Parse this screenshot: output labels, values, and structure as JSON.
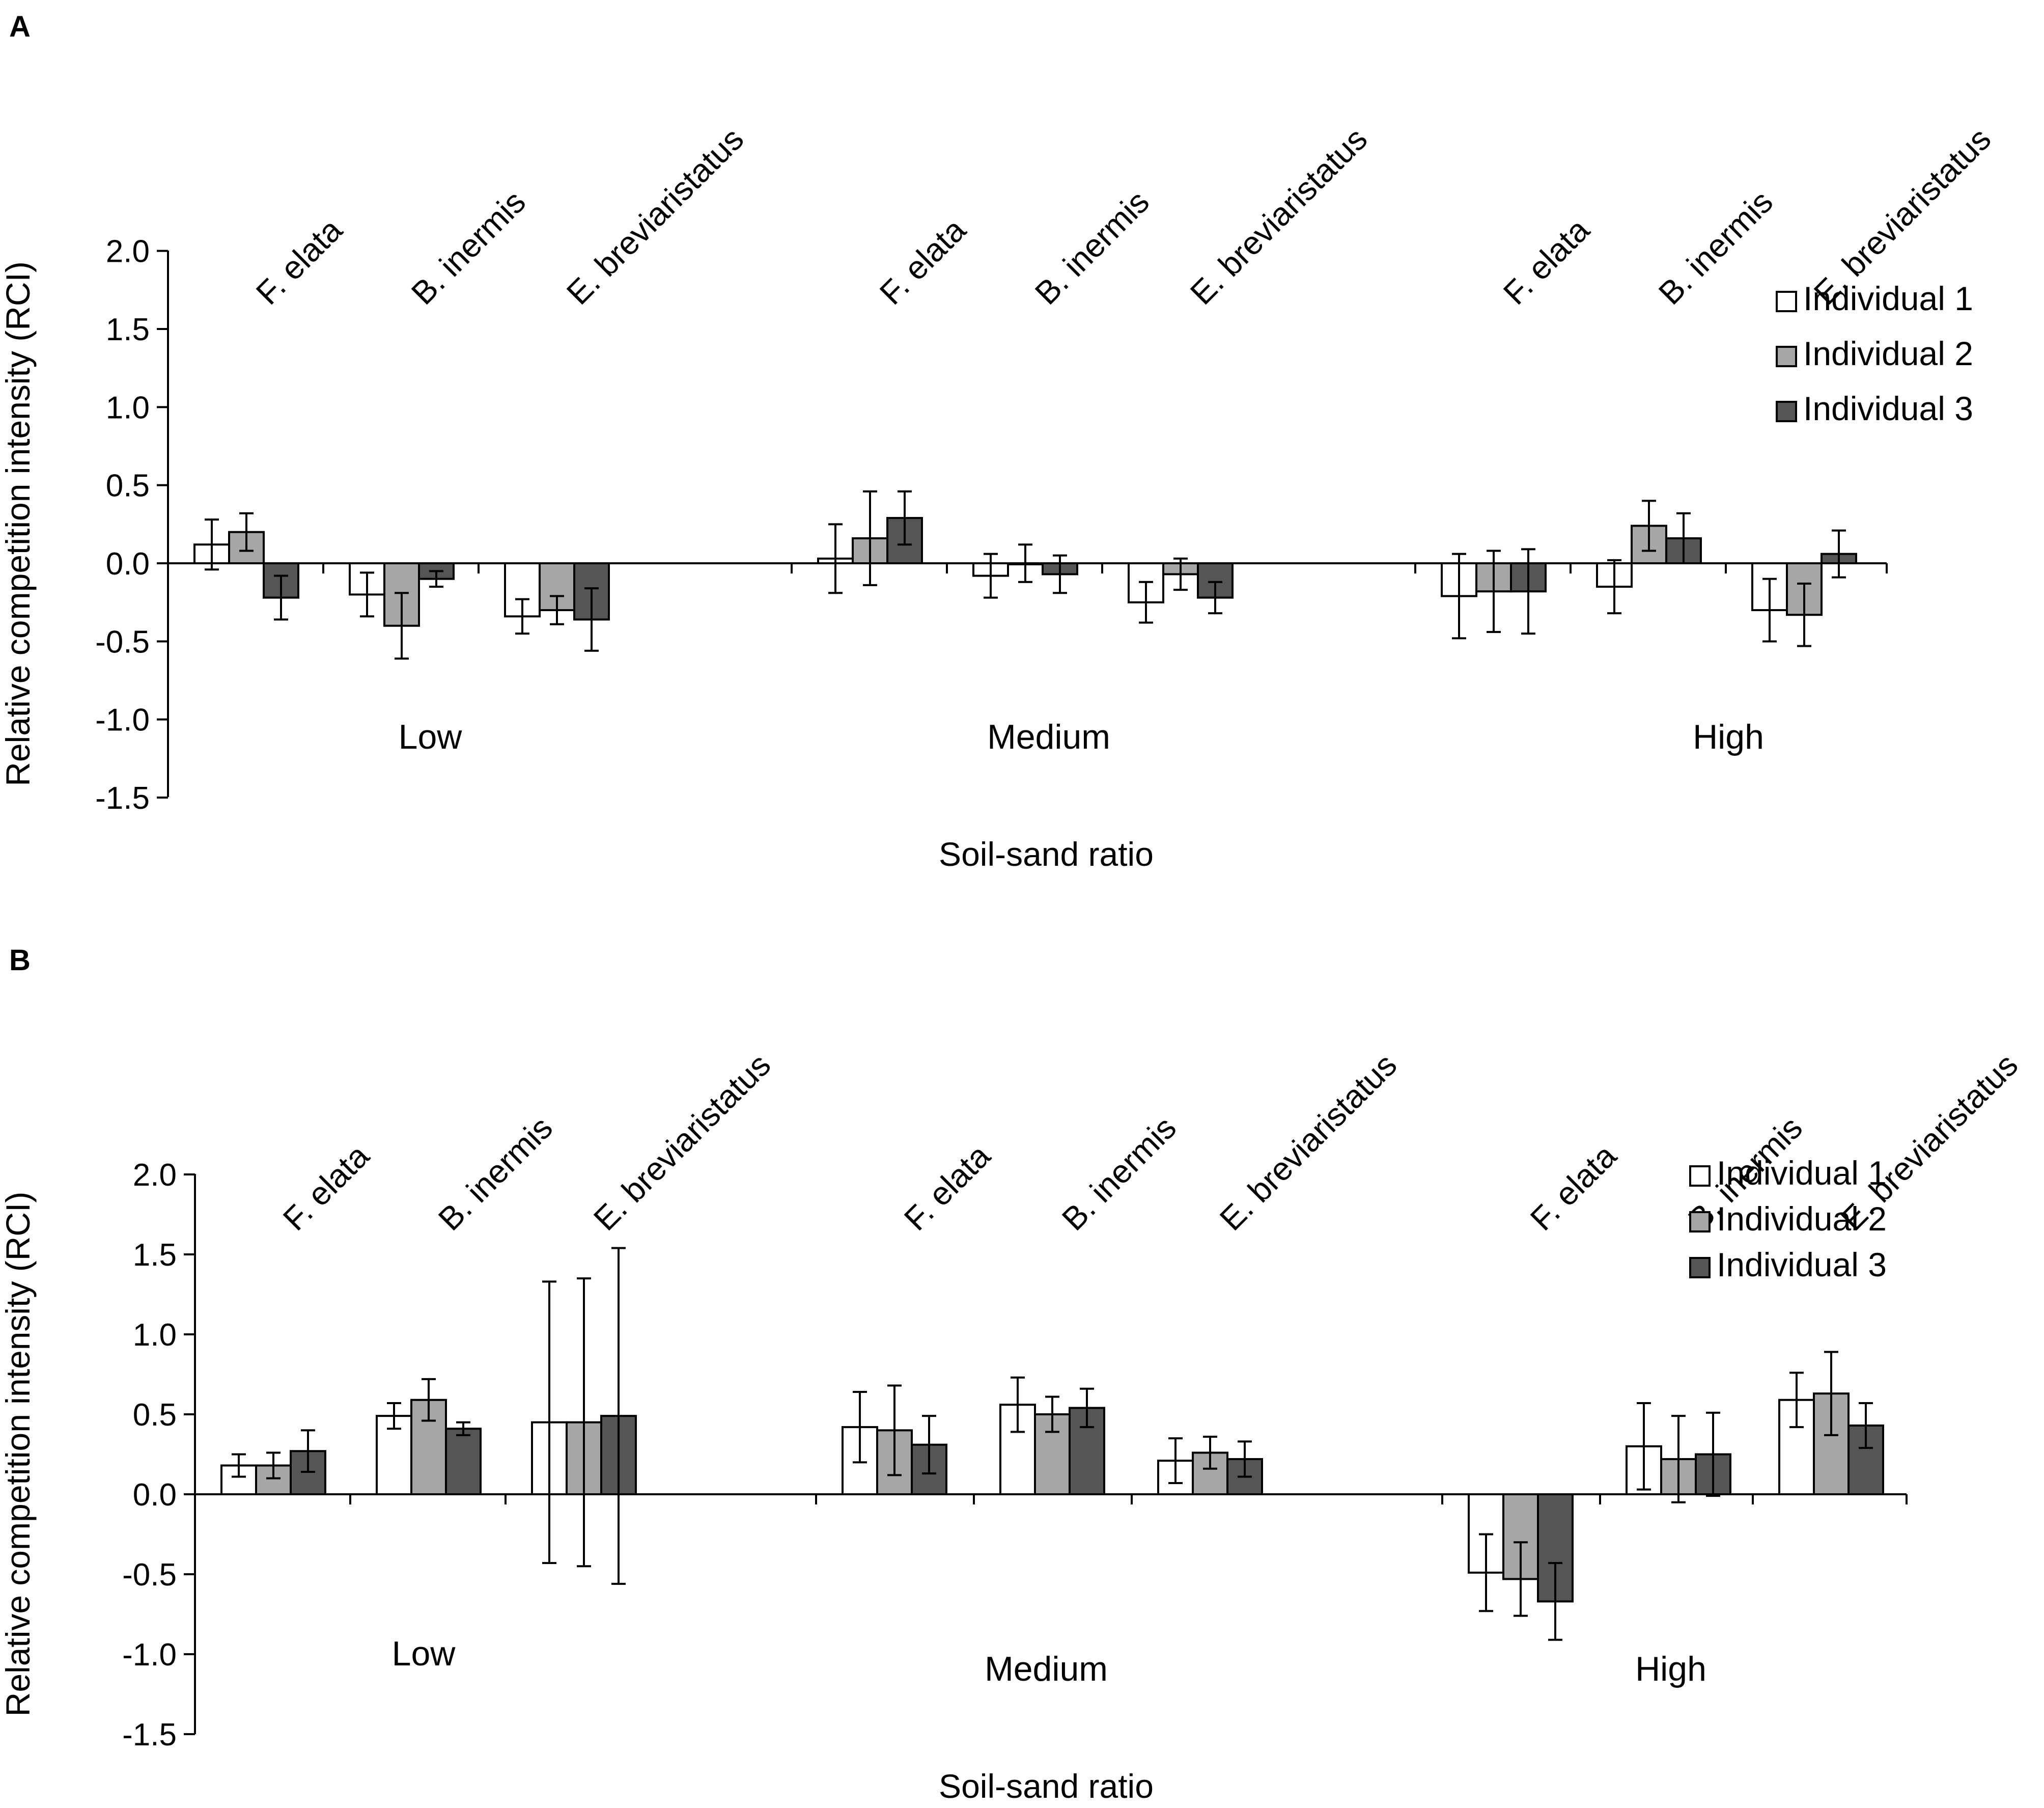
{
  "figure": {
    "panels": [
      "A",
      "B"
    ]
  },
  "colors": {
    "individual_1": "#ffffff",
    "individual_2": "#a6a6a6",
    "individual_3": "#555555",
    "stroke": "#000000"
  },
  "chart_data": [
    {
      "type": "bar",
      "panel_label": "A",
      "title": "",
      "ylabel": "Relative competition intensity (RCI)",
      "xlabel": "Soil-sand ratio",
      "ylim": [
        -1.5,
        2.0
      ],
      "yticks": [
        "2.0",
        "1.5",
        "1.0",
        "0.5",
        "0.0",
        "-0.5",
        "-1.0",
        "-1.5"
      ],
      "ytick_values": [
        2.0,
        1.5,
        1.0,
        0.5,
        0.0,
        -0.5,
        -1.0,
        -1.5
      ],
      "groups": [
        "Low",
        "Medium",
        "High"
      ],
      "categories": [
        "F. elata",
        "B. inermis",
        "E. breviaristatus",
        "F. elata",
        "B. inermis",
        "E. breviaristatus",
        "F. elata",
        "B. inermis",
        "E. breviaristatus"
      ],
      "legend": [
        "Individual 1",
        "Individual 2",
        "Individual 3"
      ],
      "legend_position": "top-right",
      "series": [
        {
          "name": "Individual 1",
          "values": [
            0.12,
            -0.2,
            -0.34,
            0.03,
            -0.08,
            -0.25,
            -0.21,
            -0.15,
            -0.3
          ],
          "errors": [
            0.16,
            0.14,
            0.11,
            0.22,
            0.14,
            0.13,
            0.27,
            0.17,
            0.2
          ]
        },
        {
          "name": "Individual 2",
          "values": [
            0.2,
            -0.4,
            -0.3,
            0.16,
            0.0,
            -0.07,
            -0.18,
            0.24,
            -0.33
          ],
          "errors": [
            0.12,
            0.21,
            0.09,
            0.3,
            0.12,
            0.1,
            0.26,
            0.16,
            0.2
          ]
        },
        {
          "name": "Individual 3",
          "values": [
            -0.22,
            -0.1,
            -0.36,
            0.29,
            -0.07,
            -0.22,
            -0.18,
            0.16,
            0.06
          ],
          "errors": [
            0.14,
            0.05,
            0.2,
            0.17,
            0.12,
            0.1,
            0.27,
            0.16,
            0.15
          ]
        }
      ]
    },
    {
      "type": "bar",
      "panel_label": "B",
      "title": "",
      "ylabel": "Relative competition intensity (RCI)",
      "xlabel": "Soil-sand ratio",
      "ylim": [
        -1.5,
        2.0
      ],
      "yticks": [
        "2.0",
        "1.5",
        "1.0",
        "0.5",
        "0.0",
        "-0.5",
        "-1.0",
        "-1.5"
      ],
      "ytick_values": [
        2.0,
        1.5,
        1.0,
        0.5,
        0.0,
        -0.5,
        -1.0,
        -1.5
      ],
      "groups": [
        "Low",
        "Medium",
        "High"
      ],
      "categories": [
        "F. elata",
        "B. inermis",
        "E. breviaristatus",
        "F. elata",
        "B. inermis",
        "E. breviaristatus",
        "F. elata",
        "B. inermis",
        "E. breviaristatus"
      ],
      "legend": [
        "Individual 1",
        "Individual 2",
        "Individual 3"
      ],
      "legend_position": "top-right",
      "series": [
        {
          "name": "Individual 1",
          "values": [
            0.18,
            0.49,
            0.45,
            0.42,
            0.56,
            0.21,
            -0.49,
            0.3,
            0.59
          ],
          "errors": [
            0.07,
            0.08,
            0.88,
            0.22,
            0.17,
            0.14,
            0.24,
            0.27,
            0.17
          ]
        },
        {
          "name": "Individual 2",
          "values": [
            0.18,
            0.59,
            0.45,
            0.4,
            0.5,
            0.26,
            -0.53,
            0.22,
            0.63
          ],
          "errors": [
            0.08,
            0.13,
            0.9,
            0.28,
            0.11,
            0.1,
            0.23,
            0.27,
            0.26
          ]
        },
        {
          "name": "Individual 3",
          "values": [
            0.27,
            0.41,
            0.49,
            0.31,
            0.54,
            0.22,
            -0.67,
            0.25,
            0.43
          ],
          "errors": [
            0.13,
            0.04,
            1.05,
            0.18,
            0.12,
            0.11,
            0.24,
            0.26,
            0.14
          ]
        }
      ]
    }
  ]
}
